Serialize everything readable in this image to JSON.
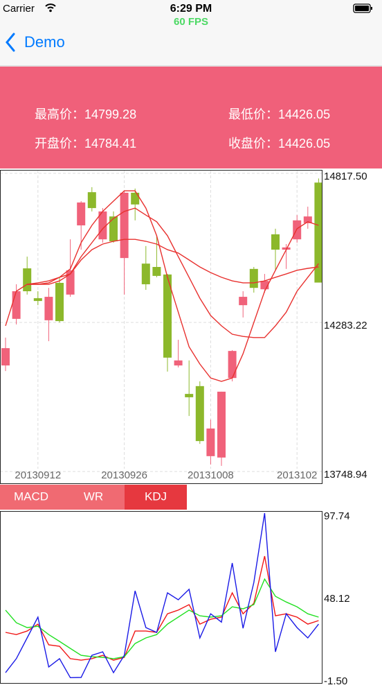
{
  "status": {
    "carrier": "Carrier",
    "time": "6:29 PM",
    "fps": "60 FPS"
  },
  "nav": {
    "back": "Demo"
  },
  "summary": {
    "items": [
      "最高价：14799.28",
      "最低价：14426.05",
      "开盘价：14784.41",
      "收盘价：14426.05"
    ]
  },
  "tabs": [
    "MACD",
    "WR",
    "KDJ"
  ],
  "chart_data": [
    {
      "type": "candlestick",
      "categories": [
        null,
        null,
        null,
        "20130912",
        null,
        null,
        null,
        null,
        null,
        null,
        null,
        "20130926",
        null,
        null,
        null,
        null,
        null,
        null,
        null,
        "20131008",
        null,
        null,
        null,
        null,
        null,
        null,
        null,
        "2013102",
        null,
        null
      ],
      "open": [
        14129,
        14296,
        14477,
        14370,
        14291,
        14425,
        14383,
        14631,
        14750,
        14581,
        14663,
        14514,
        14748,
        14494,
        14482,
        14455,
        14129,
        14027,
        14055,
        13804,
        13799,
        14084,
        14345,
        14475,
        14402,
        14599,
        14544,
        14581,
        14639,
        14784.41
      ],
      "high": [
        14229,
        14420,
        14519,
        14395,
        14407,
        14445,
        14581,
        14718,
        14768,
        14693,
        14681,
        14755,
        14763,
        14557,
        14594,
        14457,
        14221,
        14147,
        14072,
        13935,
        14035,
        14184,
        14395,
        14482,
        14457,
        14619,
        14564,
        14668,
        14698,
        14799.28
      ],
      "low": [
        14109,
        14276,
        14383,
        14345,
        14216,
        14283,
        14375,
        14544,
        14681,
        14569,
        14569,
        14383,
        14649,
        14400,
        14445,
        14107,
        14122,
        13948,
        13848,
        13774,
        13769,
        14072,
        14301,
        14390,
        14390,
        14470,
        14475,
        14569,
        14619,
        14426.05
      ],
      "close": [
        14191,
        14395,
        14395,
        14360,
        14375,
        14288,
        14470,
        14713,
        14693,
        14681,
        14574,
        14748,
        14706,
        14420,
        14450,
        14157,
        14147,
        14015,
        13858,
        13903,
        14035,
        14181,
        14375,
        14407,
        14432,
        14544,
        14552,
        14649,
        14663,
        14426.05
      ],
      "up_color": "#f0627a",
      "down_color": "#8cb82b",
      "series": [
        {
          "color": "#e8312f",
          "values": [
            14271,
            14395,
            14420,
            14425,
            14432,
            14445,
            14475,
            14569,
            14631,
            14681,
            14718,
            14755,
            14755,
            14693,
            14594,
            14445,
            14320,
            14196,
            14134,
            14084,
            14072,
            14084,
            14171,
            14283,
            14395,
            14470,
            14544,
            14619,
            14644,
            14631
          ]
        },
        {
          "color": "#e8312f",
          "values": [
            null,
            null,
            14420,
            14420,
            14425,
            14445,
            14457,
            14519,
            14569,
            14619,
            14656,
            14681,
            14693,
            14668,
            14644,
            14594,
            14519,
            14445,
            14370,
            14308,
            14271,
            14241,
            14233,
            14229,
            14229,
            14271,
            14320,
            14395,
            14445,
            14494
          ]
        },
        {
          "color": "#e8312f",
          "values": [
            null,
            null,
            14420,
            14420,
            14420,
            14432,
            14457,
            14507,
            14544,
            14564,
            14574,
            14581,
            14581,
            14574,
            14564,
            14544,
            14532,
            14507,
            14482,
            14462,
            14445,
            14432,
            14425,
            14425,
            14432,
            14445,
            14457,
            14470,
            14477,
            14482
          ]
        }
      ],
      "ylim": [
        13748.94,
        14817.5
      ],
      "yticks": [
        {
          "value": 14817.5,
          "label": "14817.50"
        },
        14283.22,
        13748.94
      ],
      "grid": true
    },
    {
      "type": "line",
      "series": [
        {
          "color": "#f01515",
          "values": [
            26.0,
            24.7,
            26.8,
            31.0,
            18.5,
            17.7,
            10.2,
            9.3,
            10.2,
            12.2,
            9.3,
            11.0,
            26.8,
            26.8,
            26.0,
            37.2,
            39.4,
            42.7,
            31.0,
            33.9,
            35.2,
            49.8,
            37.2,
            43.5,
            71.9,
            36.0,
            37.2,
            35.2,
            31.0,
            33.1
          ]
        },
        {
          "color": "#22e022",
          "values": [
            39.4,
            31.8,
            28.9,
            29.7,
            24.7,
            20.6,
            16.4,
            12.2,
            11.4,
            11.0,
            10.2,
            11.4,
            19.3,
            22.7,
            24.7,
            31.0,
            35.2,
            39.4,
            36.0,
            35.2,
            36.0,
            41.4,
            40.2,
            42.7,
            58.1,
            47.7,
            44.3,
            41.4,
            37.2,
            35.2
          ]
        },
        {
          "color": "#1a1ae6",
          "values": [
            1.8,
            10.2,
            22.7,
            35.2,
            5.2,
            10.2,
            -1.2,
            -1.1,
            12.2,
            14.3,
            1.8,
            12.2,
            51.0,
            28.9,
            26.0,
            49.8,
            45.6,
            51.9,
            22.7,
            37.2,
            32.2,
            67.7,
            28.5,
            56.0,
            97.74,
            14.3,
            37.2,
            28.9,
            22.7,
            31.0
          ]
        }
      ],
      "ylim": [
        -1.5,
        97.74
      ],
      "yticks": [
        97.74,
        48.12,
        {
          "value": -1.5,
          "label": "-1.50"
        }
      ],
      "grid": false
    }
  ]
}
